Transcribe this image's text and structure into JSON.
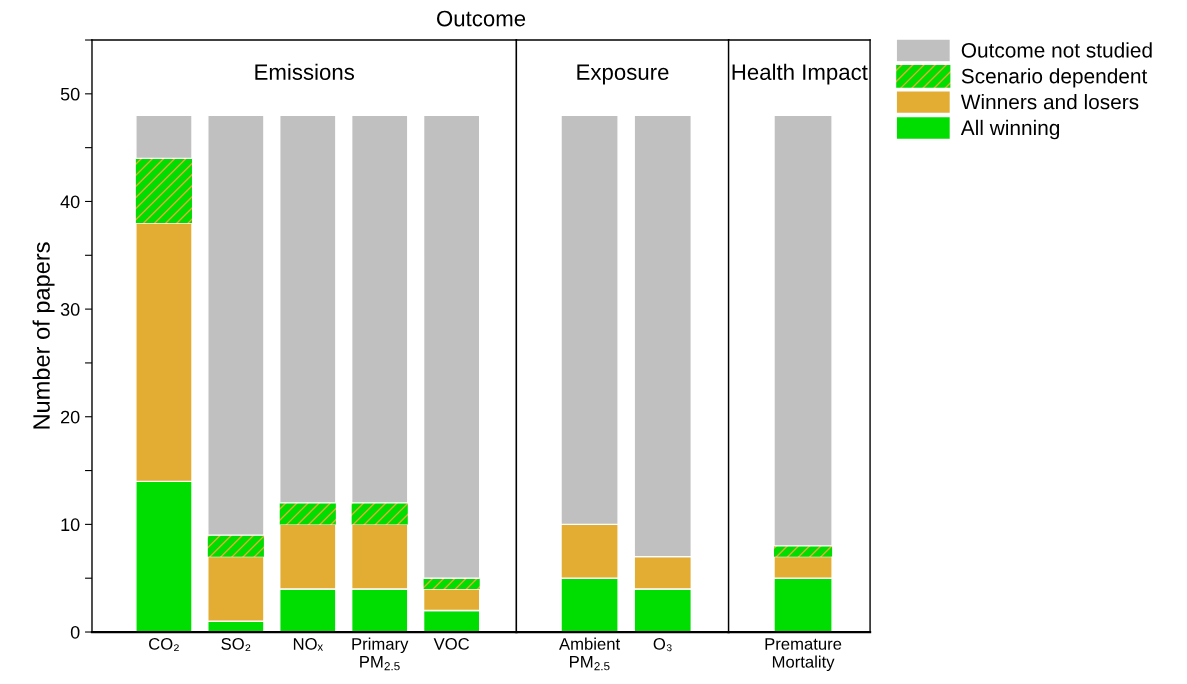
{
  "chart_data": [
    {
      "type": "bar",
      "stacked": true,
      "title": "Emissions",
      "ylabel": "Number of papers",
      "annotations": [
        "Outcome"
      ],
      "categories": [
        "CO₂",
        "SO₂",
        "NOₓ",
        "Primary\nPM$_{2.5}$",
        "VOC"
      ],
      "ylim": [
        0,
        55
      ],
      "yticks": [
        0,
        {
          "value": 5,
          "label": null
        },
        10,
        {
          "value": 15,
          "label": null
        },
        20,
        {
          "value": 25,
          "label": null
        },
        30,
        {
          "value": 35,
          "label": null
        },
        40,
        {
          "value": 45,
          "label": null
        },
        50,
        {
          "value": 55,
          "label": null
        }
      ],
      "legend": "right",
      "series": [
        {
          "name": "All winning",
          "color": "#00dd00",
          "values": [
            14,
            1,
            4,
            4,
            2
          ]
        },
        {
          "name": "Winners and losers",
          "color": "#e3ac32",
          "values": [
            24,
            6,
            6,
            6,
            2
          ]
        },
        {
          "name": "Scenario dependent",
          "color": "#00dd00",
          "values": [
            6,
            2,
            2,
            2,
            1
          ]
        },
        {
          "name": "Outcome not studied",
          "color": "#c0c0c0",
          "values": [
            4,
            39,
            36,
            36,
            43
          ]
        }
      ]
    },
    {
      "type": "bar",
      "stacked": true,
      "title": "Exposure",
      "tick_labels": "x",
      "categories": [
        "Ambient\nPM$_{2.5}$",
        "O₃"
      ],
      "ylim": [
        0,
        55
      ],
      "series": [
        {
          "color": "#00dd00",
          "values": [
            5,
            4
          ]
        },
        {
          "color": "#e3ac32",
          "values": [
            5,
            3
          ]
        },
        {
          "color": "#00dd00",
          "values": [
            0,
            0
          ]
        },
        {
          "color": "#c0c0c0",
          "values": [
            38,
            41
          ]
        }
      ]
    },
    {
      "type": "bar",
      "stacked": true,
      "title": "Health Impact",
      "tick_labels": "x",
      "categories": [
        "Premature\nMortality"
      ],
      "ylim": [
        0,
        55
      ],
      "series": [
        {
          "color": "#00dd00",
          "values": [
            5
          ]
        },
        {
          "color": "#e3ac32",
          "values": [
            2
          ]
        },
        {
          "color": "#00dd00",
          "values": [
            1
          ]
        },
        {
          "color": "#c0c0c0",
          "values": [
            40
          ]
        }
      ]
    }
  ]
}
